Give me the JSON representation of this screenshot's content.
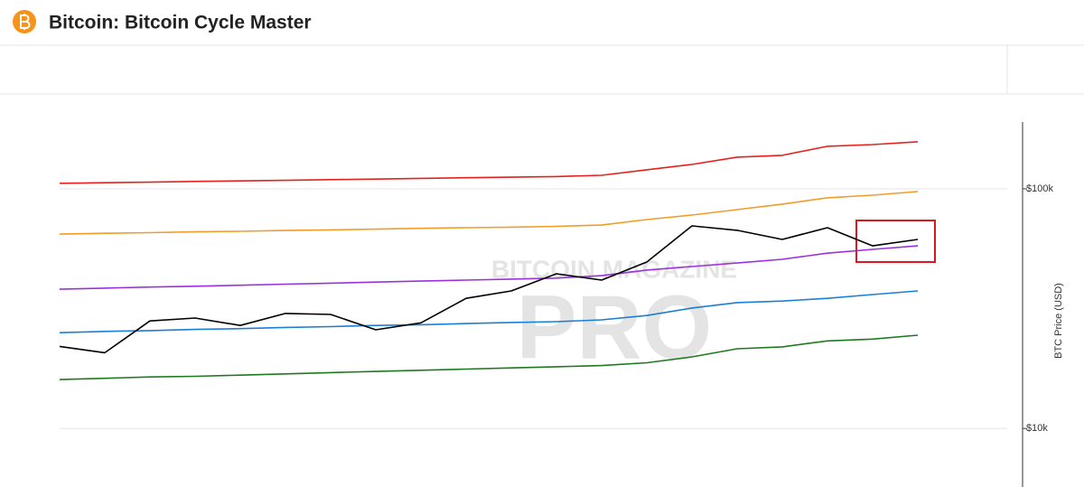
{
  "chart_data": {
    "type": "line",
    "title": "Bitcoin: Bitcoin Cycle Master",
    "y_label": "BTC Price (USD)",
    "watermark": {
      "top": "BITCOIN MAGAZINE",
      "bottom": "PRO"
    },
    "log_scale": true,
    "grid": true,
    "ylim": [
      5700,
      190000
    ],
    "yticks": [
      {
        "value": 10000,
        "label": "$10k"
      },
      {
        "value": 100000,
        "label": "$100k"
      }
    ],
    "series": [
      {
        "color": "#e8201b",
        "values": [
          105400,
          106000,
          106600,
          107300,
          107900,
          108500,
          109200,
          109800,
          110500,
          111200,
          111800,
          112500,
          113900,
          120000,
          126400,
          135500,
          137900,
          150400,
          153000,
          157100
        ]
      },
      {
        "color": "#f39c28",
        "values": [
          64700,
          65200,
          65600,
          66100,
          66500,
          67000,
          67400,
          67900,
          68400,
          68800,
          69200,
          69700,
          70600,
          74400,
          77700,
          81900,
          86300,
          91700,
          94100,
          97400
        ]
      },
      {
        "color": "#9b30e0",
        "values": [
          38100,
          38500,
          38900,
          39200,
          39600,
          40000,
          40400,
          40800,
          41200,
          41600,
          42000,
          42400,
          43400,
          45800,
          47400,
          49000,
          50800,
          53900,
          55900,
          57800
        ]
      },
      {
        "color": "#1a7fd6",
        "values": [
          25100,
          25400,
          25600,
          25900,
          26100,
          26400,
          26600,
          26900,
          27100,
          27400,
          27700,
          27900,
          28400,
          29600,
          31800,
          33500,
          34000,
          34900,
          36200,
          37500
        ]
      },
      {
        "color": "#1e7a1e",
        "values": [
          16000,
          16200,
          16400,
          16500,
          16700,
          16900,
          17100,
          17300,
          17500,
          17700,
          17900,
          18100,
          18300,
          18800,
          19900,
          21500,
          21900,
          23200,
          23600,
          24500
        ]
      },
      {
        "color": "#000000",
        "values": [
          22000,
          20700,
          28100,
          28900,
          26900,
          30200,
          29900,
          25800,
          27600,
          34900,
          37500,
          44200,
          41600,
          49500,
          70000,
          67100,
          61500,
          68800,
          57800,
          61500
        ]
      }
    ]
  }
}
